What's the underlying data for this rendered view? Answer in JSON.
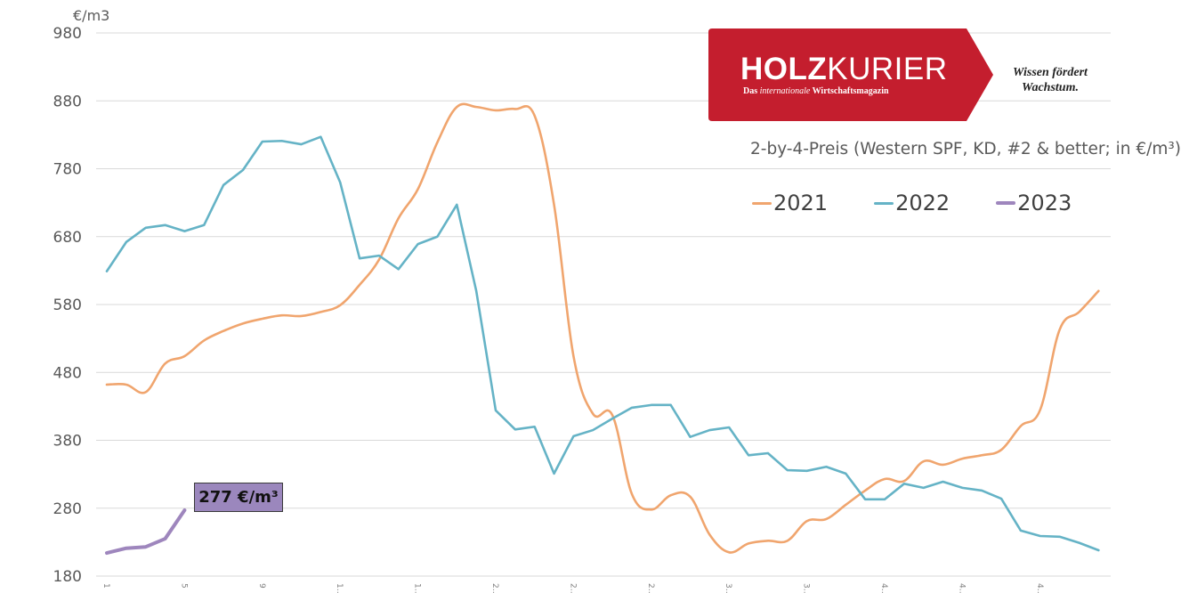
{
  "chart_data": {
    "type": "line",
    "title": "2-by-4-Preis (Western SPF, KD, #2 & better; in €/m³)",
    "xlabel": "",
    "ylabel": "€/m3",
    "ylim": [
      180,
      980
    ],
    "yticks": [
      980,
      880,
      780,
      680,
      580,
      480,
      380,
      280,
      180
    ],
    "grid": true,
    "legend_position": "top-right",
    "x": [
      1,
      2,
      3,
      4,
      5,
      6,
      7,
      8,
      9,
      10,
      11,
      12,
      13,
      14,
      15,
      16,
      17,
      18,
      19,
      20,
      21,
      22,
      23,
      24,
      25,
      26,
      27,
      28,
      29,
      30,
      31,
      32,
      33,
      34,
      35,
      36,
      37,
      38,
      39,
      40,
      41,
      42,
      43,
      44,
      45,
      46,
      47,
      48,
      49,
      50,
      51,
      52
    ],
    "xtick_labels": [
      "1",
      "5",
      "9",
      "1…",
      "1…",
      "2…",
      "2…",
      "2…",
      "3…",
      "3…",
      "4…",
      "4…",
      "4…"
    ],
    "xtick_positions": [
      1,
      5,
      9,
      13,
      17,
      21,
      25,
      29,
      33,
      37,
      41,
      45,
      49
    ],
    "series": [
      {
        "name": "2021",
        "color": "#f0a56e",
        "smooth": true,
        "values": [
          462,
          462,
          451,
          493,
          504,
          527,
          541,
          552,
          559,
          564,
          563,
          569,
          579,
          609,
          646,
          707,
          750,
          819,
          871,
          871,
          866,
          868,
          858,
          727,
          504,
          419,
          417,
          301,
          278,
          299,
          297,
          241,
          215,
          228,
          232,
          232,
          261,
          264,
          285,
          306,
          323,
          320,
          349,
          344,
          353,
          358,
          366,
          401,
          425,
          543,
          569,
          600
        ]
      },
      {
        "name": "2022",
        "color": "#65b3c6",
        "smooth": false,
        "values": [
          629,
          672,
          693,
          697,
          688,
          697,
          756,
          778,
          820,
          821,
          816,
          827,
          760,
          648,
          652,
          632,
          669,
          680,
          727,
          600,
          424,
          396,
          400,
          331,
          386,
          395,
          412,
          428,
          432,
          432,
          385,
          395,
          399,
          358,
          361,
          336,
          335,
          341,
          331,
          293,
          293,
          316,
          310,
          319,
          310,
          306,
          294,
          247,
          239,
          238,
          229,
          218
        ]
      },
      {
        "name": "2023",
        "color": "#9e86bd",
        "smooth": false,
        "values": [
          214,
          221,
          223,
          235,
          277
        ]
      }
    ],
    "annotations": [
      {
        "text": "277 €/m³",
        "series": "2023",
        "x": 5,
        "y": 277
      }
    ]
  },
  "header": {
    "logo_bold": "HOLZ",
    "logo_light": "KURIER",
    "logo_sub_prefix": "Das ",
    "logo_sub_italic": "internationale",
    "logo_sub_suffix": " Wirtschaftsmagazin",
    "slogan_line1": "Wissen fördert",
    "slogan_line2": "Wachstum.",
    "brand_color": "#c41e2e"
  },
  "legend": [
    {
      "label": "2021",
      "color": "#f0a56e"
    },
    {
      "label": "2022",
      "color": "#65b3c6"
    },
    {
      "label": "2023",
      "color": "#9e86bd"
    }
  ],
  "callout": {
    "label": "277 €/m³",
    "color": "#9b87bd"
  }
}
